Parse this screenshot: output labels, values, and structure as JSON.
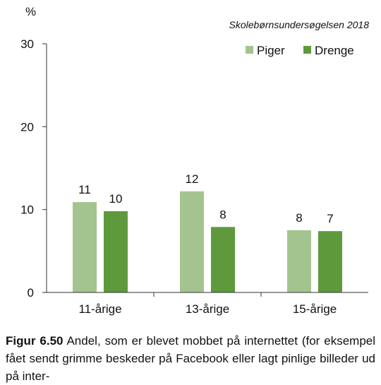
{
  "chart_data": {
    "type": "bar",
    "unit_label": "%",
    "source": "Skolebørnsundersøgelsen 2018",
    "categories": [
      "11-årige",
      "13-årige",
      "15-årige"
    ],
    "series": [
      {
        "name": "Piger",
        "color": "#a3c48f",
        "values": [
          11,
          12,
          8
        ],
        "actual": [
          10.9,
          12.2,
          7.5
        ]
      },
      {
        "name": "Drenge",
        "color": "#5e9a3c",
        "values": [
          10,
          8,
          7
        ],
        "actual": [
          9.8,
          7.9,
          7.4
        ]
      }
    ],
    "yticks": [
      0,
      10,
      20,
      30
    ],
    "ylim": [
      0,
      30
    ],
    "legend_position": "top-right",
    "grid": false
  },
  "caption": {
    "label": "Figur 6.50",
    "text": " Andel, som er blevet mobbet på inter­nettet (for eksempel fået sendt grimme beskeder på Facebook eller lagt pinlige billeder ud på inter-"
  }
}
